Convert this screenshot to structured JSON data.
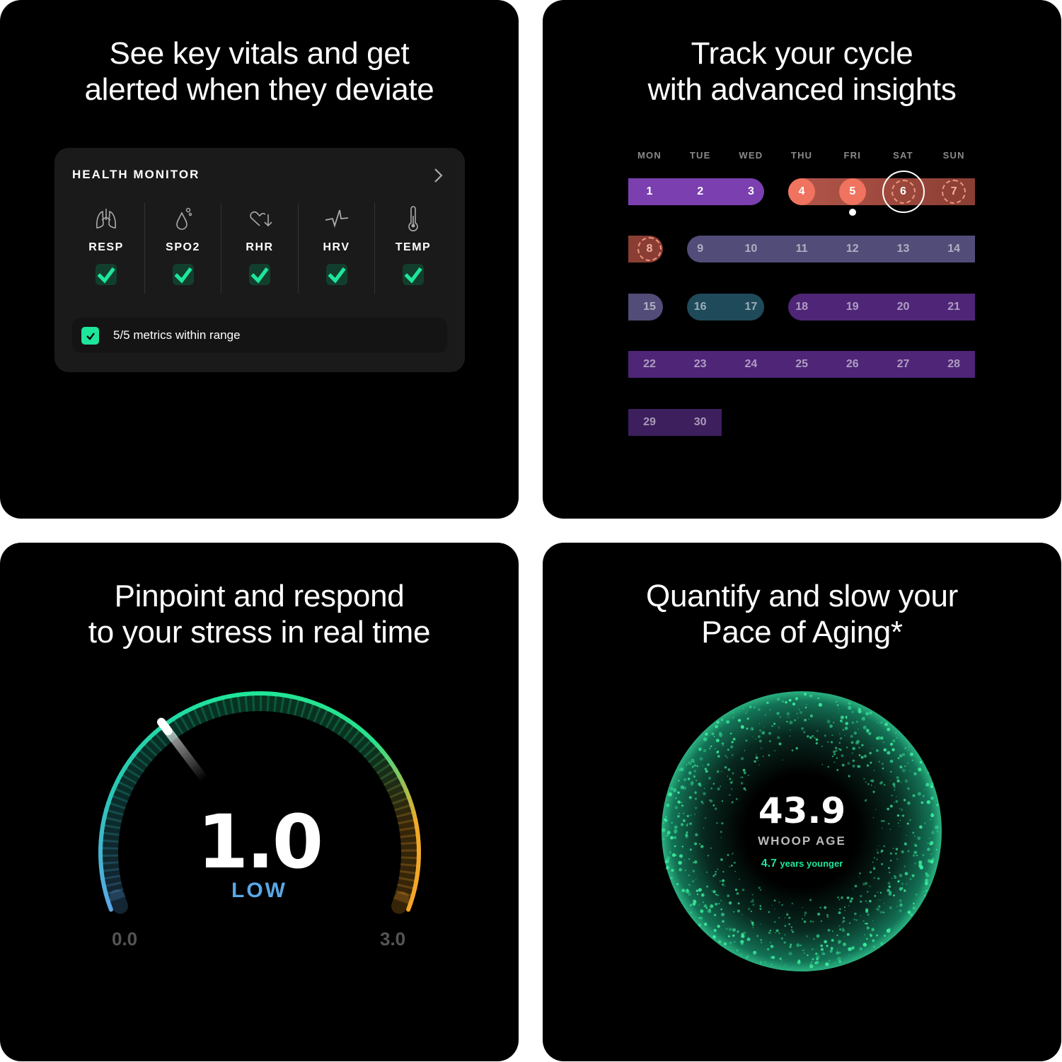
{
  "panels": {
    "vitals": {
      "title_line1": "See key vitals and get",
      "title_line2": "alerted when they deviate",
      "card": {
        "title": "HEALTH MONITOR",
        "chevron_icon": "chevron-right-icon",
        "metrics": [
          {
            "label": "RESP",
            "icon": "lungs-icon"
          },
          {
            "label": "SPO2",
            "icon": "blood-drop-icon"
          },
          {
            "label": "RHR",
            "icon": "heart-down-icon"
          },
          {
            "label": "HRV",
            "icon": "heart-rate-variability-icon"
          },
          {
            "label": "TEMP",
            "icon": "thermometer-icon"
          }
        ],
        "summary": "5/5 metrics within range",
        "accent": "#1ee69a"
      }
    },
    "cycle": {
      "title_line1": "Track your cycle",
      "title_line2": "with advanced insights",
      "weekdays": [
        "MON",
        "TUE",
        "WED",
        "THU",
        "FRI",
        "SAT",
        "SUN"
      ],
      "colors": {
        "follicular": "#7b3fb0",
        "period": "#b4564a",
        "period_solid": "#f0735f",
        "predicted": "#8a3e33",
        "fertile": "#514c78",
        "ovulation": "#1f4a5a",
        "luteal": "#4e2577",
        "late": "#3d1f5e"
      },
      "today": 6,
      "selected": 5
    },
    "stress": {
      "title_line1": "Pinpoint and respond",
      "title_line2": "to your stress in real time",
      "value": "1.0",
      "level": "LOW",
      "min_label": "0.0",
      "max_label": "3.0",
      "min": 0,
      "max": 3,
      "current": 1.0,
      "level_color": "#5aa7e6"
    },
    "aging": {
      "title_line1": "Quantify and slow your",
      "title_line2": "Pace of Aging*",
      "age": "43.9",
      "label": "WHOOP AGE",
      "delta": "4.7",
      "delta_text": "years younger",
      "accent": "#1ee69a"
    }
  }
}
